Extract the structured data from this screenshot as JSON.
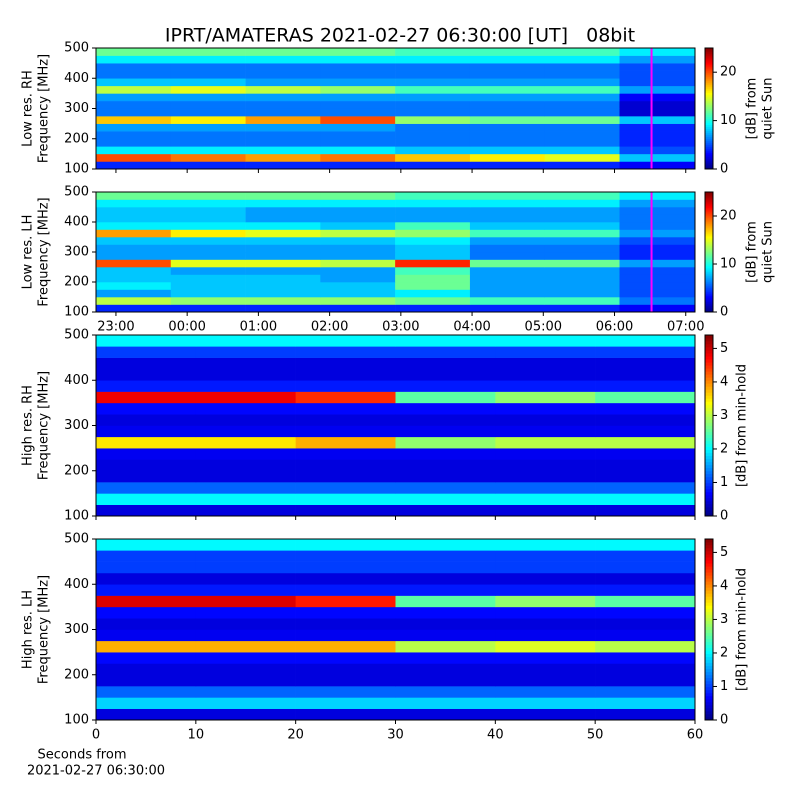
{
  "title": "IPRT/AMATERAS 2021-02-27 06:30:00 [UT]   08bit",
  "chart_data": [
    {
      "type": "heatmap",
      "colormap": "jet",
      "ylabel": [
        "Low res. RH",
        "Frequency [MHz]"
      ],
      "xlim": [
        22.72,
        31.13
      ],
      "xticks": [
        23,
        24,
        25,
        26,
        27,
        28,
        29,
        30,
        31
      ],
      "xticklabels": false,
      "ylim": [
        100,
        500
      ],
      "yticks": [
        100,
        200,
        300,
        400,
        500
      ],
      "clim": [
        0,
        25
      ],
      "cticks": [
        0,
        10,
        20
      ],
      "clabel": [
        "[dB] from",
        "quiet Sun"
      ],
      "vline_x": 30.52,
      "vline_color": "#ff00ff",
      "xbins": [
        22.72,
        23.77,
        24.82,
        25.87,
        26.92,
        27.97,
        29.02,
        30.07,
        31.13
      ],
      "ybins": [
        100,
        125,
        150,
        175,
        200,
        225,
        250,
        275,
        300,
        325,
        350,
        375,
        400,
        425,
        450,
        475,
        500
      ],
      "z": [
        [
          4,
          4,
          4,
          4,
          4,
          4,
          4,
          3
        ],
        [
          20,
          19,
          18,
          19,
          17,
          16,
          15,
          8
        ],
        [
          9,
          9,
          9,
          9,
          8,
          8,
          8,
          5
        ],
        [
          6,
          6,
          6,
          6,
          6,
          6,
          6,
          4
        ],
        [
          6,
          6,
          6,
          6,
          6,
          6,
          6,
          4
        ],
        [
          7,
          7,
          7,
          7,
          6,
          6,
          6,
          4
        ],
        [
          17,
          16,
          18,
          20,
          13,
          12,
          12,
          8
        ],
        [
          6,
          6,
          6,
          6,
          6,
          6,
          6,
          2
        ],
        [
          6,
          6,
          6,
          6,
          6,
          6,
          6,
          2
        ],
        [
          7,
          7,
          7,
          7,
          7,
          7,
          7,
          3
        ],
        [
          14,
          15,
          14,
          13,
          11,
          11,
          11,
          7
        ],
        [
          8,
          8,
          7,
          7,
          7,
          7,
          7,
          5
        ],
        [
          6,
          6,
          6,
          6,
          6,
          6,
          6,
          5
        ],
        [
          6,
          6,
          6,
          6,
          6,
          6,
          6,
          5
        ],
        [
          9,
          9,
          9,
          9,
          9,
          9,
          9,
          7
        ],
        [
          12,
          12,
          12,
          12,
          11,
          11,
          11,
          9
        ]
      ]
    },
    {
      "type": "heatmap",
      "colormap": "jet",
      "ylabel": [
        "Low res. LH",
        "Frequency [MHz]"
      ],
      "xlim": [
        22.72,
        31.13
      ],
      "xticks": [
        {
          "value": 23,
          "label": "23:00"
        },
        {
          "value": 24,
          "label": "00:00"
        },
        {
          "value": 25,
          "label": "01:00"
        },
        {
          "value": 26,
          "label": "02:00"
        },
        {
          "value": 27,
          "label": "03:00"
        },
        {
          "value": 28,
          "label": "04:00"
        },
        {
          "value": 29,
          "label": "05:00"
        },
        {
          "value": 30,
          "label": "06:00"
        },
        {
          "value": 31,
          "label": "07:00"
        }
      ],
      "ylim": [
        100,
        500
      ],
      "yticks": [
        100,
        200,
        300,
        400,
        500
      ],
      "clim": [
        0,
        25
      ],
      "cticks": [
        0,
        10,
        20
      ],
      "clabel": [
        "[dB] from",
        "quiet Sun"
      ],
      "vline_x": 30.52,
      "vline_color": "#ff00ff",
      "xbins": [
        22.72,
        23.77,
        24.82,
        25.87,
        26.92,
        27.97,
        29.02,
        30.07,
        31.13
      ],
      "ybins": [
        100,
        125,
        150,
        175,
        200,
        225,
        250,
        275,
        300,
        325,
        350,
        375,
        400,
        425,
        450,
        475,
        500
      ],
      "z": [
        [
          4,
          4,
          4,
          4,
          4,
          4,
          4,
          3
        ],
        [
          14,
          13,
          13,
          13,
          12,
          11,
          11,
          6
        ],
        [
          7,
          8,
          8,
          8,
          9,
          7,
          7,
          5
        ],
        [
          9,
          8,
          8,
          8,
          12,
          7,
          7,
          5
        ],
        [
          8,
          8,
          8,
          7,
          12,
          7,
          7,
          5
        ],
        [
          8,
          7,
          7,
          7,
          11,
          7,
          7,
          5
        ],
        [
          20,
          15,
          15,
          14,
          21,
          12,
          12,
          7
        ],
        [
          7,
          7,
          7,
          7,
          8,
          6,
          6,
          4
        ],
        [
          7,
          7,
          7,
          7,
          8,
          6,
          6,
          4
        ],
        [
          8,
          8,
          8,
          8,
          9,
          7,
          7,
          5
        ],
        [
          18,
          16,
          15,
          14,
          13,
          11,
          11,
          7
        ],
        [
          9,
          9,
          9,
          8,
          11,
          8,
          8,
          6
        ],
        [
          8,
          8,
          7,
          7,
          7,
          7,
          7,
          6
        ],
        [
          8,
          8,
          7,
          7,
          7,
          7,
          7,
          6
        ],
        [
          9,
          9,
          9,
          9,
          9,
          9,
          9,
          7
        ],
        [
          12,
          12,
          12,
          12,
          11,
          11,
          11,
          9
        ]
      ]
    },
    {
      "type": "heatmap",
      "colormap": "jet",
      "ylabel": [
        "High res. RH",
        "Frequency [MHz]"
      ],
      "xlim": [
        0,
        60
      ],
      "xticks": [
        0,
        10,
        20,
        30,
        40,
        50,
        60
      ],
      "xticklabels": false,
      "ylim": [
        100,
        500
      ],
      "yticks": [
        100,
        200,
        300,
        400,
        500
      ],
      "clim": [
        0,
        5.4
      ],
      "cticks": [
        0,
        1,
        2,
        3,
        4,
        5
      ],
      "clabel": [
        "[dB] from min-hold"
      ],
      "xbins": [
        0,
        10,
        20,
        30,
        40,
        50,
        60
      ],
      "ybins": [
        100,
        125,
        150,
        175,
        200,
        225,
        250,
        275,
        300,
        325,
        350,
        375,
        400,
        425,
        450,
        475,
        500
      ],
      "z": [
        [
          0.5,
          0.5,
          0.5,
          0.5,
          0.5,
          0.5
        ],
        [
          2,
          2,
          2,
          2,
          2,
          2
        ],
        [
          1.2,
          1.2,
          1.2,
          1.2,
          1.2,
          1.2
        ],
        [
          0.5,
          0.5,
          0.5,
          0.5,
          0.5,
          0.5
        ],
        [
          0.5,
          0.5,
          0.5,
          0.5,
          0.5,
          0.5
        ],
        [
          0.6,
          0.6,
          0.6,
          0.6,
          0.6,
          0.6
        ],
        [
          3.5,
          3.5,
          3.8,
          2.8,
          3,
          3
        ],
        [
          0.6,
          0.6,
          0.6,
          0.6,
          0.6,
          0.6
        ],
        [
          0.5,
          0.5,
          0.5,
          0.5,
          0.5,
          0.5
        ],
        [
          0.7,
          0.7,
          0.7,
          0.7,
          0.7,
          0.7
        ],
        [
          4.8,
          4.8,
          4.5,
          2.5,
          2.8,
          2.5
        ],
        [
          0.8,
          0.8,
          0.8,
          0.8,
          0.8,
          0.8
        ],
        [
          0.5,
          0.5,
          0.5,
          0.5,
          0.5,
          0.5
        ],
        [
          0.5,
          0.5,
          0.5,
          0.5,
          0.5,
          0.5
        ],
        [
          1,
          1,
          1,
          1,
          1,
          1
        ],
        [
          2,
          2,
          2,
          2,
          2,
          2
        ]
      ]
    },
    {
      "type": "heatmap",
      "colormap": "jet",
      "ylabel": [
        "High res. LH",
        "Frequency [MHz]"
      ],
      "xlabel": [
        "Seconds from",
        "2021-02-27 06:30:00"
      ],
      "xlim": [
        0,
        60
      ],
      "xticks": [
        0,
        10,
        20,
        30,
        40,
        50,
        60
      ],
      "ylim": [
        100,
        500
      ],
      "yticks": [
        100,
        200,
        300,
        400,
        500
      ],
      "clim": [
        0,
        5.4
      ],
      "cticks": [
        0,
        1,
        2,
        3,
        4,
        5
      ],
      "clabel": [
        "[dB] from min-hold"
      ],
      "xbins": [
        0,
        10,
        20,
        30,
        40,
        50,
        60
      ],
      "ybins": [
        100,
        125,
        150,
        175,
        200,
        225,
        250,
        275,
        300,
        325,
        350,
        375,
        400,
        425,
        450,
        475,
        500
      ],
      "z": [
        [
          0.5,
          0.5,
          0.5,
          0.5,
          0.5,
          0.5
        ],
        [
          1.8,
          1.8,
          1.8,
          1.8,
          1.8,
          1.8
        ],
        [
          1.2,
          1.2,
          1.2,
          1.2,
          1.2,
          1.2
        ],
        [
          0.5,
          0.5,
          0.5,
          0.5,
          0.5,
          0.5
        ],
        [
          0.5,
          0.5,
          0.5,
          0.5,
          0.5,
          0.5
        ],
        [
          0.7,
          0.7,
          0.7,
          0.7,
          0.7,
          0.7
        ],
        [
          3.8,
          3.8,
          3.8,
          3,
          3.2,
          3
        ],
        [
          0.6,
          0.6,
          0.6,
          0.6,
          0.6,
          0.6
        ],
        [
          0.5,
          0.5,
          0.5,
          0.5,
          0.5,
          0.5
        ],
        [
          0.7,
          0.7,
          0.7,
          0.7,
          0.7,
          0.7
        ],
        [
          4.9,
          4.9,
          4.6,
          2.5,
          2.8,
          2.5
        ],
        [
          0.8,
          0.8,
          0.8,
          0.8,
          0.8,
          0.8
        ],
        [
          0.5,
          0.5,
          0.5,
          0.5,
          0.5,
          0.5
        ],
        [
          1,
          1,
          1,
          1,
          1,
          1
        ],
        [
          1,
          1,
          1,
          1,
          1,
          1
        ],
        [
          2,
          2,
          2,
          2,
          2,
          2
        ]
      ]
    }
  ]
}
